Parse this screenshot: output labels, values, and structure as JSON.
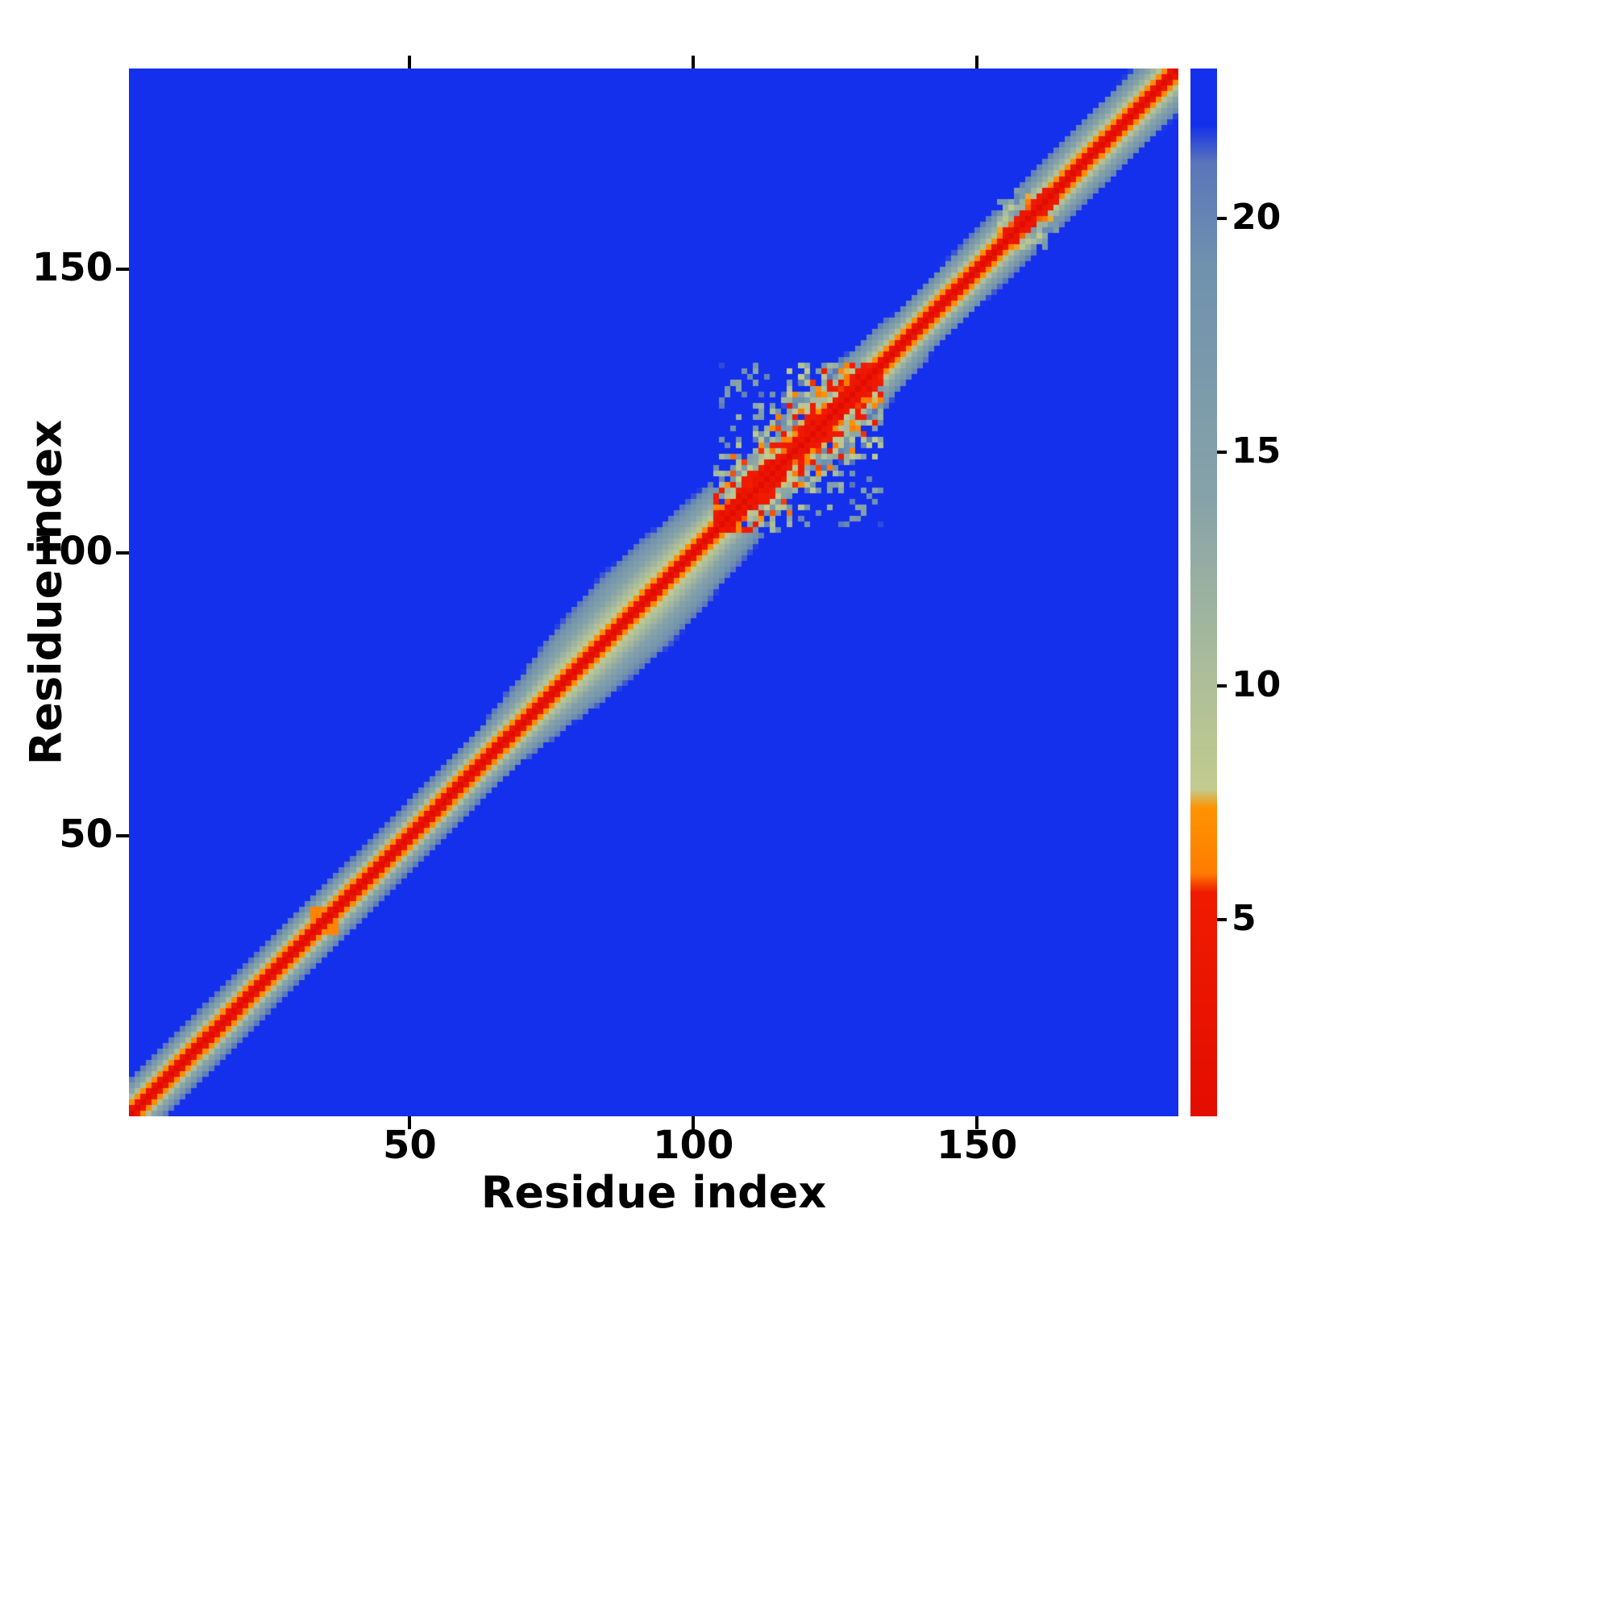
{
  "figure": {
    "background": "#ffffff"
  },
  "chart_data": {
    "type": "heatmap",
    "title": "",
    "xlabel": "Residue index",
    "ylabel": "Residue index",
    "n_residues": 185,
    "x_range": [
      1,
      185
    ],
    "y_range": [
      1,
      185
    ],
    "x_ticks": [
      50,
      100,
      150
    ],
    "y_ticks": [
      50,
      100,
      150
    ],
    "colorbar": {
      "vmin": 0.8,
      "vmax": 23.2,
      "ticks": [
        5,
        10,
        15,
        20
      ]
    },
    "colormap": {
      "background": "#1430ec",
      "stops": [
        [
          0.0,
          "#e20b00"
        ],
        [
          5.6,
          "#f01c00"
        ],
        [
          6.0,
          "#ff7c00"
        ],
        [
          7.4,
          "#ff9400"
        ],
        [
          7.8,
          "#c3cc8f"
        ],
        [
          10.5,
          "#aabc9b"
        ],
        [
          14.0,
          "#87a3a9"
        ],
        [
          19.0,
          "#7092ae"
        ],
        [
          21.2,
          "#5b76bb"
        ],
        [
          22.0,
          "#1430ec"
        ],
        [
          23.2,
          "#1430ec"
        ]
      ]
    },
    "diagonal_model": {
      "core_step": 3.5,
      "core_k": 2,
      "max_value": 23,
      "width_profile": [
        [
          1,
          6.8
        ],
        [
          28,
          6.5
        ],
        [
          34,
          7.2
        ],
        [
          40,
          6.5
        ],
        [
          62,
          6.8
        ],
        [
          70,
          7.6
        ],
        [
          76,
          10.5
        ],
        [
          84,
          13.0
        ],
        [
          96,
          13.0
        ],
        [
          102,
          11.5
        ],
        [
          106,
          9.5
        ],
        [
          132,
          9.5
        ],
        [
          136,
          7.0
        ],
        [
          148,
          7.2
        ],
        [
          156,
          8.2
        ],
        [
          162,
          7.8
        ],
        [
          170,
          8.2
        ],
        [
          185,
          8.6
        ]
      ]
    },
    "noise_regions": [
      {
        "from": 104,
        "to": 133,
        "halfwidth": 11,
        "seed": 7,
        "min_factor": 0.25,
        "span_factor": 1.35
      },
      {
        "from": 154,
        "to": 164,
        "halfwidth": 7.5,
        "seed": 3,
        "min_factor": 0.55,
        "span_factor": 0.85
      }
    ],
    "hotspots": [
      {
        "i": 34,
        "j": 36,
        "r": 1,
        "value": 6.5
      }
    ]
  }
}
